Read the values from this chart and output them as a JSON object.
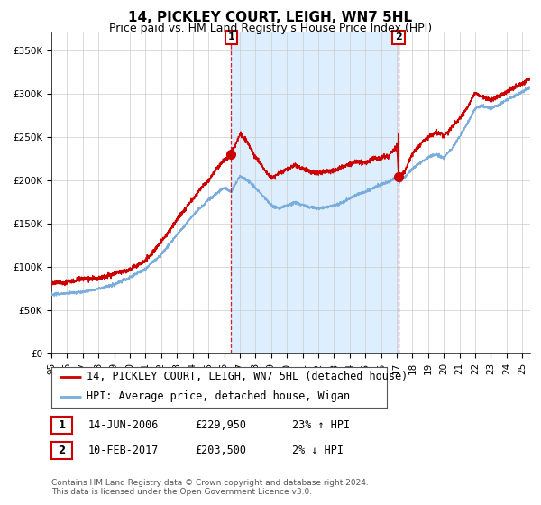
{
  "title": "14, PICKLEY COURT, LEIGH, WN7 5HL",
  "subtitle": "Price paid vs. HM Land Registry's House Price Index (HPI)",
  "ylim": [
    0,
    370000
  ],
  "xlim_start": 1995.0,
  "xlim_end": 2025.5,
  "yticks": [
    0,
    50000,
    100000,
    150000,
    200000,
    250000,
    300000,
    350000
  ],
  "ytick_labels": [
    "£0",
    "£50K",
    "£100K",
    "£150K",
    "£200K",
    "£250K",
    "£300K",
    "£350K"
  ],
  "xtick_years": [
    1995,
    1996,
    1997,
    1998,
    1999,
    2000,
    2001,
    2002,
    2003,
    2004,
    2005,
    2006,
    2007,
    2008,
    2009,
    2010,
    2011,
    2012,
    2013,
    2014,
    2015,
    2016,
    2017,
    2018,
    2019,
    2020,
    2021,
    2022,
    2023,
    2024,
    2025
  ],
  "marker1_x": 2006.45,
  "marker1_y": 229950,
  "marker2_x": 2017.12,
  "marker2_y": 203500,
  "shade_start": 2006.45,
  "shade_end": 2017.12,
  "red_line_color": "#cc0000",
  "blue_line_color": "#7aaddc",
  "shade_color": "#ddeeff",
  "grid_color": "#cccccc",
  "background_color": "#ffffff",
  "legend1_text": "14, PICKLEY COURT, LEIGH, WN7 5HL (detached house)",
  "legend2_text": "HPI: Average price, detached house, Wigan",
  "table_row1": [
    "1",
    "14-JUN-2006",
    "£229,950",
    "23% ↑ HPI"
  ],
  "table_row2": [
    "2",
    "10-FEB-2017",
    "£203,500",
    "2% ↓ HPI"
  ],
  "footer": "Contains HM Land Registry data © Crown copyright and database right 2024.\nThis data is licensed under the Open Government Licence v3.0.",
  "title_fontsize": 11,
  "subtitle_fontsize": 9,
  "tick_fontsize": 7.5,
  "legend_fontsize": 8.5,
  "footer_fontsize": 6.5
}
